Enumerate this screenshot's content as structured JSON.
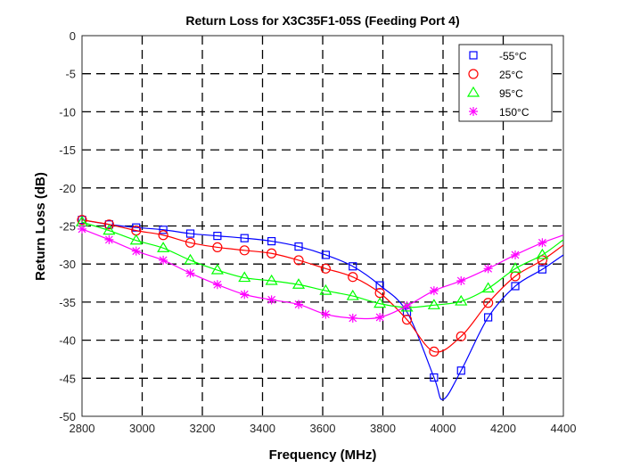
{
  "chart_data": {
    "type": "line",
    "title": "Return Loss for X3C35F1-05S (Feeding Port 4)",
    "xlabel": "Frequency (MHz)",
    "ylabel": "Return Loss (dB)",
    "xlim": [
      2800,
      4400
    ],
    "ylim": [
      -50,
      0
    ],
    "xticks": [
      "2800",
      "3000",
      "3200",
      "3400",
      "3600",
      "3800",
      "4000",
      "4200",
      "4400"
    ],
    "yticks": [
      "0",
      "-5",
      "-10",
      "-15",
      "-20",
      "-25",
      "-30",
      "-35",
      "-40",
      "-45",
      "-50"
    ],
    "grid": true,
    "legend_position": "top-right",
    "x": [
      2800,
      2890,
      2980,
      3070,
      3160,
      3250,
      3340,
      3430,
      3520,
      3610,
      3700,
      3790,
      3880,
      3970,
      4060,
      4150,
      4240,
      4330
    ],
    "series": [
      {
        "name": "-55°C",
        "color": "#0000ff",
        "marker": "square",
        "values": [
          -24.2,
          -24.8,
          -25.2,
          -25.5,
          -26.0,
          -26.3,
          -26.6,
          -27.0,
          -27.7,
          -28.8,
          -30.3,
          -32.8,
          -36.3,
          -44.9,
          -44.0,
          -37.0,
          -32.9,
          -30.7
        ],
        "minimum": {
          "x": 4000,
          "y": -47.8
        },
        "end": {
          "x": 4400,
          "y": -28.8
        }
      },
      {
        "name": "25°C",
        "color": "#ff0000",
        "marker": "circle",
        "values": [
          -24.2,
          -24.8,
          -25.6,
          -26.2,
          -27.2,
          -27.8,
          -28.2,
          -28.6,
          -29.5,
          -30.6,
          -31.7,
          -33.8,
          -37.3,
          -41.5,
          -39.5,
          -35.1,
          -31.6,
          -29.5
        ],
        "end": {
          "x": 4400,
          "y": -27.5
        }
      },
      {
        "name": "95°C",
        "color": "#00ff00",
        "marker": "triangle",
        "values": [
          -24.5,
          -25.6,
          -26.9,
          -27.9,
          -29.5,
          -30.8,
          -31.8,
          -32.2,
          -32.7,
          -33.5,
          -34.2,
          -35.2,
          -35.7,
          -35.4,
          -34.9,
          -33.2,
          -30.6,
          -28.8
        ],
        "end": {
          "x": 4400,
          "y": -26.8
        }
      },
      {
        "name": "150°C",
        "color": "#ff00ff",
        "marker": "asterisk",
        "values": [
          -25.4,
          -26.8,
          -28.3,
          -29.5,
          -31.2,
          -32.7,
          -34.0,
          -34.7,
          -35.3,
          -36.6,
          -37.1,
          -37.0,
          -35.5,
          -33.5,
          -32.2,
          -30.6,
          -28.8,
          -27.2
        ],
        "end": {
          "x": 4400,
          "y": -26.2
        }
      }
    ]
  }
}
